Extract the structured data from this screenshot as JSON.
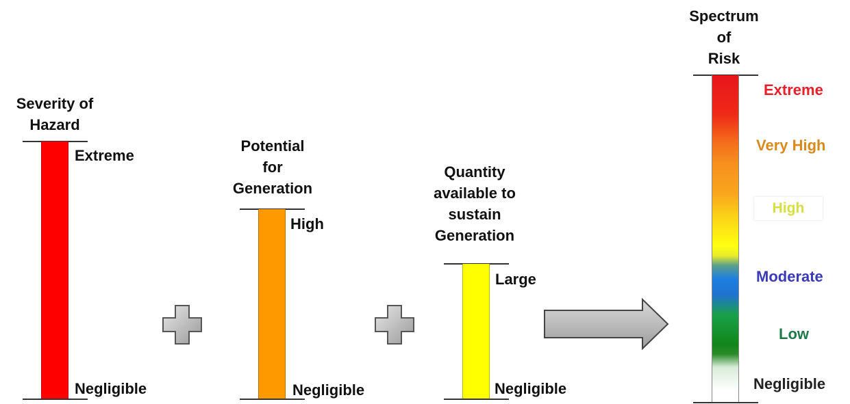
{
  "columns": [
    {
      "title": [
        "Severity of",
        "Hazard"
      ],
      "top_label": "Extreme",
      "bottom_label": "Negligible",
      "color": "#ff0000"
    },
    {
      "title": [
        "Potential",
        "for",
        "Generation"
      ],
      "top_label": "High",
      "bottom_label": "Negligible",
      "color": "#ff9900"
    },
    {
      "title": [
        "Quantity",
        "available to",
        "sustain",
        "Generation"
      ],
      "top_label": "Large",
      "bottom_label": "Negligible",
      "color": "#ffff00"
    }
  ],
  "spectrum": {
    "title": [
      "Spectrum",
      "of",
      "Risk"
    ],
    "levels": [
      {
        "label": "Extreme",
        "color": "#e8202a"
      },
      {
        "label": "Very High",
        "color": "#d98a1e"
      },
      {
        "label": "High",
        "color": "#d6e040"
      },
      {
        "label": "Moderate",
        "color": "#3a3ab8"
      },
      {
        "label": "Low",
        "color": "#1f7a4a"
      },
      {
        "label": "Negligible",
        "color": "#222222"
      }
    ]
  }
}
